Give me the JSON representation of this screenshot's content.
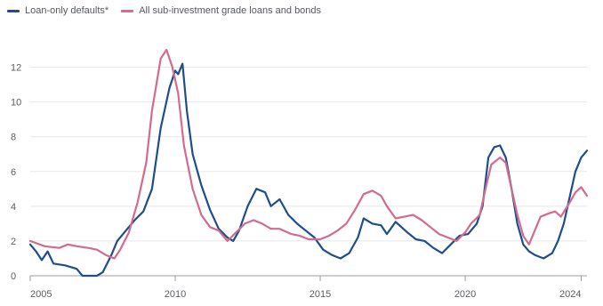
{
  "legend": {
    "items": [
      {
        "label": "Loan-only defaults*",
        "color": "#1f4e8c"
      },
      {
        "label": "All sub-investment grade loans and bonds",
        "color": "#d36b8f"
      }
    ]
  },
  "chart_data": {
    "type": "line",
    "title": "",
    "xlabel": "",
    "ylabel": "",
    "xlim": [
      2005,
      2024.2
    ],
    "ylim": [
      0,
      13
    ],
    "yticks": [
      "0",
      "2",
      "4",
      "6",
      "8",
      "10",
      "12"
    ],
    "xticks": [
      "2005",
      "2010",
      "2015",
      "2020",
      "2024"
    ],
    "grid": true,
    "legend_position": "top-left",
    "series": [
      {
        "name": "Loan-only defaults*",
        "color": "#1f4e8c",
        "points": [
          [
            2005.0,
            1.8
          ],
          [
            2005.2,
            1.4
          ],
          [
            2005.4,
            0.9
          ],
          [
            2005.6,
            1.4
          ],
          [
            2005.8,
            0.7
          ],
          [
            2006.2,
            0.6
          ],
          [
            2006.6,
            0.4
          ],
          [
            2006.8,
            0.0
          ],
          [
            2007.3,
            0.0
          ],
          [
            2007.5,
            0.2
          ],
          [
            2007.8,
            1.2
          ],
          [
            2008.0,
            2.0
          ],
          [
            2008.3,
            2.6
          ],
          [
            2008.6,
            3.2
          ],
          [
            2008.9,
            3.7
          ],
          [
            2009.2,
            5.0
          ],
          [
            2009.5,
            8.5
          ],
          [
            2009.8,
            10.8
          ],
          [
            2010.0,
            11.8
          ],
          [
            2010.1,
            11.6
          ],
          [
            2010.25,
            12.2
          ],
          [
            2010.4,
            9.5
          ],
          [
            2010.6,
            7.0
          ],
          [
            2010.9,
            5.2
          ],
          [
            2011.2,
            3.8
          ],
          [
            2011.5,
            2.7
          ],
          [
            2011.8,
            2.2
          ],
          [
            2012.0,
            2.0
          ],
          [
            2012.2,
            2.6
          ],
          [
            2012.5,
            4.0
          ],
          [
            2012.8,
            5.0
          ],
          [
            2013.1,
            4.8
          ],
          [
            2013.3,
            4.0
          ],
          [
            2013.6,
            4.4
          ],
          [
            2013.9,
            3.5
          ],
          [
            2014.2,
            3.0
          ],
          [
            2014.5,
            2.6
          ],
          [
            2014.8,
            2.2
          ],
          [
            2015.1,
            1.5
          ],
          [
            2015.4,
            1.2
          ],
          [
            2015.7,
            1.0
          ],
          [
            2016.0,
            1.3
          ],
          [
            2016.3,
            2.2
          ],
          [
            2016.5,
            3.3
          ],
          [
            2016.8,
            3.0
          ],
          [
            2017.1,
            2.9
          ],
          [
            2017.3,
            2.4
          ],
          [
            2017.6,
            3.1
          ],
          [
            2018.0,
            2.5
          ],
          [
            2018.3,
            2.1
          ],
          [
            2018.6,
            2.0
          ],
          [
            2018.9,
            1.6
          ],
          [
            2019.2,
            1.3
          ],
          [
            2019.5,
            1.8
          ],
          [
            2019.8,
            2.3
          ],
          [
            2020.1,
            2.4
          ],
          [
            2020.4,
            3.0
          ],
          [
            2020.6,
            4.0
          ],
          [
            2020.8,
            6.8
          ],
          [
            2021.0,
            7.4
          ],
          [
            2021.2,
            7.5
          ],
          [
            2021.4,
            6.8
          ],
          [
            2021.6,
            5.0
          ],
          [
            2021.8,
            3.0
          ],
          [
            2022.0,
            1.8
          ],
          [
            2022.2,
            1.4
          ],
          [
            2022.4,
            1.2
          ],
          [
            2022.7,
            1.0
          ],
          [
            2023.0,
            1.3
          ],
          [
            2023.2,
            2.0
          ],
          [
            2023.4,
            3.0
          ],
          [
            2023.6,
            4.5
          ],
          [
            2023.8,
            6.0
          ],
          [
            2024.0,
            6.8
          ],
          [
            2024.2,
            7.2
          ]
        ]
      },
      {
        "name": "All sub-investment grade loans and bonds",
        "color": "#d36b8f",
        "points": [
          [
            2005.0,
            2.0
          ],
          [
            2005.5,
            1.7
          ],
          [
            2006.0,
            1.6
          ],
          [
            2006.3,
            1.8
          ],
          [
            2006.6,
            1.7
          ],
          [
            2007.0,
            1.6
          ],
          [
            2007.3,
            1.5
          ],
          [
            2007.6,
            1.2
          ],
          [
            2007.9,
            1.0
          ],
          [
            2008.1,
            1.5
          ],
          [
            2008.4,
            2.5
          ],
          [
            2008.7,
            4.2
          ],
          [
            2009.0,
            6.5
          ],
          [
            2009.2,
            9.5
          ],
          [
            2009.5,
            12.5
          ],
          [
            2009.7,
            13.0
          ],
          [
            2009.9,
            12.0
          ],
          [
            2010.1,
            10.5
          ],
          [
            2010.3,
            7.5
          ],
          [
            2010.6,
            5.0
          ],
          [
            2010.9,
            3.5
          ],
          [
            2011.2,
            2.8
          ],
          [
            2011.5,
            2.6
          ],
          [
            2011.8,
            2.0
          ],
          [
            2012.1,
            2.5
          ],
          [
            2012.4,
            3.0
          ],
          [
            2012.7,
            3.2
          ],
          [
            2013.0,
            3.0
          ],
          [
            2013.3,
            2.7
          ],
          [
            2013.6,
            2.7
          ],
          [
            2014.0,
            2.4
          ],
          [
            2014.3,
            2.3
          ],
          [
            2014.6,
            2.1
          ],
          [
            2015.0,
            2.1
          ],
          [
            2015.3,
            2.3
          ],
          [
            2015.6,
            2.6
          ],
          [
            2015.9,
            3.0
          ],
          [
            2016.2,
            3.8
          ],
          [
            2016.5,
            4.7
          ],
          [
            2016.8,
            4.9
          ],
          [
            2017.1,
            4.6
          ],
          [
            2017.3,
            4.0
          ],
          [
            2017.6,
            3.3
          ],
          [
            2017.9,
            3.4
          ],
          [
            2018.2,
            3.5
          ],
          [
            2018.5,
            3.2
          ],
          [
            2018.8,
            2.8
          ],
          [
            2019.1,
            2.4
          ],
          [
            2019.4,
            2.2
          ],
          [
            2019.7,
            2.0
          ],
          [
            2020.0,
            2.5
          ],
          [
            2020.2,
            3.0
          ],
          [
            2020.5,
            3.5
          ],
          [
            2020.7,
            5.0
          ],
          [
            2020.9,
            6.4
          ],
          [
            2021.2,
            6.8
          ],
          [
            2021.4,
            6.5
          ],
          [
            2021.6,
            5.0
          ],
          [
            2021.8,
            3.5
          ],
          [
            2022.0,
            2.3
          ],
          [
            2022.2,
            1.8
          ],
          [
            2022.4,
            2.6
          ],
          [
            2022.6,
            3.4
          ],
          [
            2022.9,
            3.6
          ],
          [
            2023.1,
            3.7
          ],
          [
            2023.3,
            3.4
          ],
          [
            2023.6,
            4.2
          ],
          [
            2023.8,
            4.8
          ],
          [
            2024.0,
            5.1
          ],
          [
            2024.2,
            4.6
          ]
        ]
      }
    ]
  }
}
